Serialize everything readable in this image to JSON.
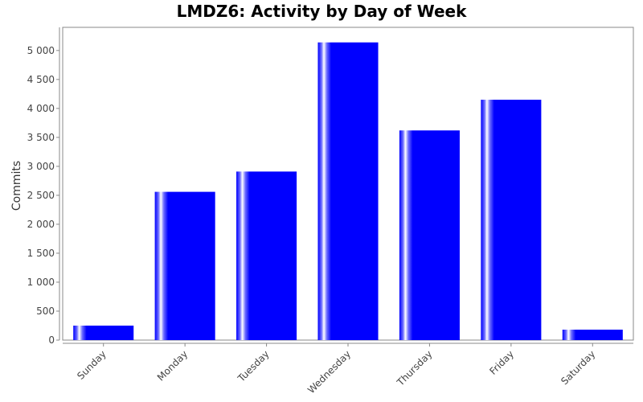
{
  "chart_data": {
    "type": "bar",
    "title": "LMDZ6: Activity by Day of Week",
    "xlabel": "",
    "ylabel": "Commits",
    "categories": [
      "Sunday",
      "Monday",
      "Tuesday",
      "Wednesday",
      "Thursday",
      "Friday",
      "Saturday"
    ],
    "values": [
      250,
      2560,
      2910,
      5140,
      3620,
      4150,
      180
    ],
    "ylim": [
      0,
      5400
    ],
    "yticks": [
      0,
      500,
      1000,
      1500,
      2000,
      2500,
      3000,
      3500,
      4000,
      4500,
      5000
    ],
    "ytick_labels": [
      "0",
      "500",
      "1 000",
      "1 500",
      "2 000",
      "2 500",
      "3 000",
      "3 500",
      "4 000",
      "4 500",
      "5 000"
    ],
    "grid": false,
    "legend": "none",
    "colors": {
      "bar": "#0000ff",
      "highlight": "#ffffff",
      "plot_border": "#888888",
      "background": "#ffffff"
    }
  }
}
